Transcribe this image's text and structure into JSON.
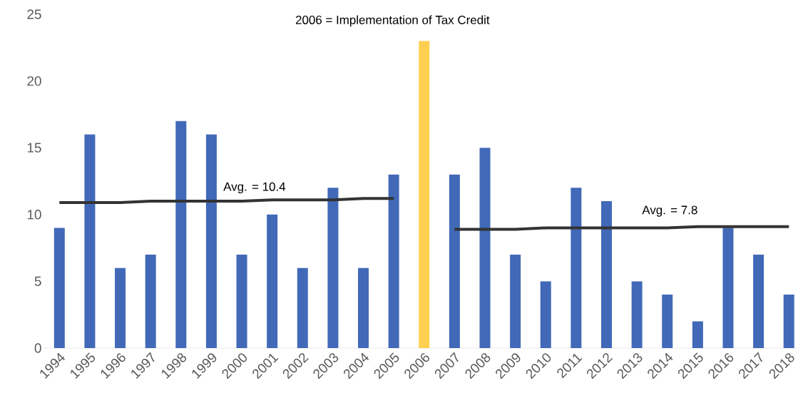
{
  "chart_data": {
    "type": "bar",
    "categories": [
      "1994",
      "1995",
      "1996",
      "1997",
      "1998",
      "1999",
      "2000",
      "2001",
      "2002",
      "2003",
      "2004",
      "2005",
      "2006",
      "2007",
      "2008",
      "2009",
      "2010",
      "2011",
      "2012",
      "2013",
      "2014",
      "2015",
      "2016",
      "2017",
      "2018"
    ],
    "series": [
      {
        "values": [
          9,
          16,
          6,
          7,
          17,
          16,
          7,
          10,
          6,
          12,
          6,
          13,
          23,
          13,
          15,
          7,
          5,
          12,
          11,
          5,
          4,
          2,
          9,
          7,
          4
        ],
        "colors": [
          "#4169b8",
          "#4169b8",
          "#4169b8",
          "#4169b8",
          "#4169b8",
          "#4169b8",
          "#4169b8",
          "#4169b8",
          "#4169b8",
          "#4169b8",
          "#4169b8",
          "#4169b8",
          "#ffd04f",
          "#4169b8",
          "#4169b8",
          "#4169b8",
          "#4169b8",
          "#4169b8",
          "#4169b8",
          "#4169b8",
          "#4169b8",
          "#4169b8",
          "#4169b8",
          "#4169b8",
          "#4169b8"
        ]
      },
      {
        "type": "line",
        "values": [
          10.9,
          10.9,
          10.9,
          11.0,
          11.0,
          11.0,
          11.0,
          11.1,
          11.1,
          11.1,
          11.2,
          11.2,
          null,
          null,
          null,
          null,
          null,
          null,
          null,
          null,
          null,
          null,
          null,
          null,
          null
        ],
        "color": "#333333"
      },
      {
        "type": "line",
        "values": [
          null,
          null,
          null,
          null,
          null,
          null,
          null,
          null,
          null,
          null,
          null,
          null,
          null,
          8.9,
          8.9,
          8.9,
          9.0,
          9.0,
          9.0,
          9.0,
          9.0,
          9.1,
          9.1,
          9.1,
          9.1
        ],
        "color": "#333333"
      }
    ],
    "ylim": [
      0,
      25
    ],
    "yticks": [
      0,
      5,
      10,
      15,
      20,
      25
    ],
    "annotations": [
      "2006 = Implementation of Tax Credit",
      "Avg. = 10.4",
      "Avg. = 7.8"
    ]
  }
}
